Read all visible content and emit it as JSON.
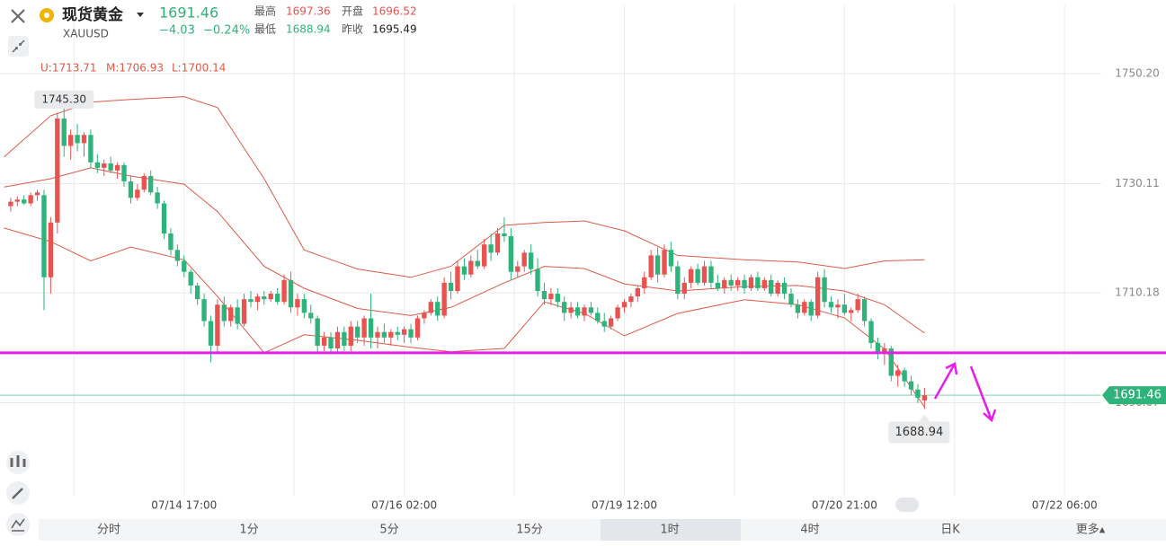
{
  "quote": {
    "name": "现货黄金",
    "symbol": "XAUUSD",
    "price": "1691.46",
    "change": "−4.03",
    "change_pct": "−0.24%",
    "high_label": "最高",
    "high": "1697.36",
    "open_label": "开盘",
    "open": "1696.52",
    "low_label": "最低",
    "low": "1688.94",
    "prev_close_label": "昨收",
    "prev_close": "1695.49"
  },
  "tabs": [
    "分时",
    "1分",
    "5分",
    "15分",
    "1时",
    "4时",
    "日K",
    "更多▴"
  ],
  "chart_data": {
    "type": "candlestick",
    "up_color": "#e8534f",
    "down_color": "#2eb37a",
    "band_color": "#dd5a48",
    "ylim": [
      1673.1,
      1757.09
    ],
    "xlim": [
      -1.6,
      163.5
    ],
    "yticks": [
      {
        "value": 1750.2,
        "label": "1750.20"
      },
      {
        "value": 1730.11,
        "label": "1730.11"
      },
      {
        "value": 1710.18,
        "label": "1710.18"
      },
      {
        "value": 1690.07,
        "label": "1690.07"
      }
    ],
    "xticks": [
      {
        "value": 26,
        "label": "07/14 17:00"
      },
      {
        "value": 59,
        "label": "07/16 02:00"
      },
      {
        "value": 92,
        "label": "07/19 12:00"
      },
      {
        "value": 125,
        "label": "07/20 21:00"
      },
      {
        "value": 158,
        "label": "07/22 06:00"
      }
    ],
    "minor_xticks": [
      9.5,
      42.5,
      75.5,
      108.5,
      141.5
    ],
    "grid": true,
    "candles": [
      [
        1726,
        1727.5,
        1725,
        1726.8
      ],
      [
        1726.8,
        1727.8,
        1726,
        1727.2
      ],
      [
        1727.2,
        1728,
        1726.2,
        1726.5
      ],
      [
        1726.5,
        1728.5,
        1726,
        1728
      ],
      [
        1728,
        1729,
        1727,
        1728.5
      ],
      [
        1728,
        1729,
        1707,
        1713
      ],
      [
        1713,
        1724,
        1710,
        1723
      ],
      [
        1723,
        1743,
        1721,
        1742
      ],
      [
        1742,
        1745.3,
        1735,
        1737
      ],
      [
        1737,
        1740,
        1734.5,
        1739
      ],
      [
        1739,
        1741,
        1736,
        1737.5
      ],
      [
        1737.5,
        1739.5,
        1735,
        1739
      ],
      [
        1739,
        1740,
        1733,
        1734
      ],
      [
        1734,
        1735.5,
        1732,
        1733
      ],
      [
        1733,
        1734.5,
        1731.5,
        1733.8
      ],
      [
        1733.8,
        1735,
        1732,
        1732.5
      ],
      [
        1732.5,
        1734,
        1731,
        1733.5
      ],
      [
        1733.5,
        1734,
        1729.5,
        1730.5
      ],
      [
        1730.5,
        1731.5,
        1726.5,
        1727.5
      ],
      [
        1727.5,
        1730,
        1727,
        1729
      ],
      [
        1729,
        1732,
        1728.5,
        1731.5
      ],
      [
        1731.5,
        1732.5,
        1728,
        1728.5
      ],
      [
        1728.5,
        1729.5,
        1725.5,
        1726.5
      ],
      [
        1726.5,
        1727,
        1720,
        1721
      ],
      [
        1721,
        1722,
        1717,
        1718
      ],
      [
        1718,
        1719,
        1715,
        1716
      ],
      [
        1716,
        1717,
        1713,
        1714
      ],
      [
        1714,
        1714.5,
        1710,
        1711.5
      ],
      [
        1711.5,
        1712,
        1708,
        1709
      ],
      [
        1709,
        1710,
        1704,
        1705
      ],
      [
        1705,
        1706,
        1697.5,
        1700.5
      ],
      [
        1700.5,
        1709,
        1699,
        1708
      ],
      [
        1708,
        1709.5,
        1704,
        1705
      ],
      [
        1705,
        1708,
        1704,
        1707.5
      ],
      [
        1707.5,
        1709,
        1703.5,
        1704.5
      ],
      [
        1704.5,
        1710,
        1704,
        1709
      ],
      [
        1709,
        1710.5,
        1707.5,
        1708.5
      ],
      [
        1708.5,
        1710,
        1707,
        1709.5
      ],
      [
        1709.5,
        1710.5,
        1708,
        1709
      ],
      [
        1709,
        1710.5,
        1708.5,
        1710
      ],
      [
        1710,
        1711,
        1708,
        1708.5
      ],
      [
        1708.5,
        1713.5,
        1708,
        1712.5
      ],
      [
        1712.5,
        1714,
        1706.5,
        1707.5
      ],
      [
        1707.5,
        1710,
        1706,
        1709
      ],
      [
        1709,
        1710,
        1705.5,
        1706.5
      ],
      [
        1706.5,
        1708,
        1704.5,
        1705.5
      ],
      [
        1705.5,
        1706,
        1699,
        1700.5
      ],
      [
        1700.5,
        1703,
        1699.5,
        1702
      ],
      [
        1702,
        1703,
        1699,
        1700
      ],
      [
        1700,
        1704,
        1699,
        1703
      ],
      [
        1703,
        1704,
        1699.5,
        1700.5
      ],
      [
        1700.5,
        1705,
        1699.5,
        1704
      ],
      [
        1704,
        1705,
        1701,
        1702
      ],
      [
        1702,
        1706,
        1700.5,
        1705.5
      ],
      [
        1705.5,
        1710,
        1700,
        1702
      ],
      [
        1702,
        1704,
        1700,
        1703
      ],
      [
        1703,
        1704.5,
        1701,
        1702
      ],
      [
        1702,
        1703.5,
        1700.5,
        1703
      ],
      [
        1703,
        1704,
        1701.5,
        1702.5
      ],
      [
        1702.5,
        1704,
        1701,
        1703.5
      ],
      [
        1703.5,
        1704.5,
        1701,
        1702
      ],
      [
        1702,
        1706,
        1701.5,
        1705.5
      ],
      [
        1705.5,
        1707,
        1704.5,
        1706.5
      ],
      [
        1706.5,
        1709,
        1706,
        1708.5
      ],
      [
        1708.5,
        1709.5,
        1705,
        1706
      ],
      [
        1706,
        1713,
        1705.5,
        1712
      ],
      [
        1712,
        1714,
        1709,
        1710.5
      ],
      [
        1710.5,
        1716,
        1710,
        1715
      ],
      [
        1715,
        1716.5,
        1712.5,
        1713.5
      ],
      [
        1713.5,
        1717,
        1713,
        1716
      ],
      [
        1716,
        1718,
        1714.5,
        1715
      ],
      [
        1715,
        1720,
        1714.5,
        1719
      ],
      [
        1719,
        1721,
        1716,
        1717.5
      ],
      [
        1717.5,
        1722,
        1717,
        1721
      ],
      [
        1721,
        1724,
        1719.5,
        1720.5
      ],
      [
        1720.5,
        1722,
        1712.5,
        1714
      ],
      [
        1714,
        1716,
        1713,
        1715
      ],
      [
        1715,
        1718,
        1714,
        1717.5
      ],
      [
        1717.5,
        1719,
        1713.5,
        1714.5
      ],
      [
        1714.5,
        1716.5,
        1709.5,
        1710.5
      ],
      [
        1710.5,
        1712,
        1708,
        1709
      ],
      [
        1709,
        1711,
        1708,
        1710
      ],
      [
        1710,
        1711,
        1707.5,
        1708.5
      ],
      [
        1708.5,
        1709.5,
        1705,
        1706.5
      ],
      [
        1706.5,
        1708.5,
        1705.5,
        1707.5
      ],
      [
        1707.5,
        1708.5,
        1705.5,
        1706
      ],
      [
        1706,
        1708,
        1705,
        1707.5
      ],
      [
        1707.5,
        1708.5,
        1706,
        1706.5
      ],
      [
        1706.5,
        1707.5,
        1704.5,
        1705
      ],
      [
        1705,
        1706.5,
        1703,
        1704
      ],
      [
        1704,
        1706,
        1703.5,
        1705.5
      ],
      [
        1705.5,
        1708,
        1705,
        1707.5
      ],
      [
        1707.5,
        1709,
        1706.5,
        1708.5
      ],
      [
        1708.5,
        1710,
        1707.5,
        1709.5
      ],
      [
        1709.5,
        1711.5,
        1708.5,
        1711
      ],
      [
        1711,
        1714,
        1710,
        1713
      ],
      [
        1713,
        1718,
        1712.5,
        1717
      ],
      [
        1717,
        1718.5,
        1712,
        1713.5
      ],
      [
        1713.5,
        1719,
        1713,
        1718
      ],
      [
        1718,
        1719.5,
        1714,
        1715
      ],
      [
        1715,
        1716,
        1709,
        1710
      ],
      [
        1710,
        1713,
        1709,
        1712
      ],
      [
        1712,
        1715,
        1711,
        1714.5
      ],
      [
        1714.5,
        1715.5,
        1711.5,
        1712
      ],
      [
        1712,
        1716,
        1711.5,
        1715
      ],
      [
        1715,
        1716,
        1711,
        1712
      ],
      [
        1712,
        1713.5,
        1710.5,
        1711
      ],
      [
        1711,
        1713,
        1710,
        1712.5
      ],
      [
        1712.5,
        1713.5,
        1710.5,
        1711.5
      ],
      [
        1711.5,
        1713,
        1710.5,
        1712.5
      ],
      [
        1712.5,
        1713.5,
        1710,
        1711
      ],
      [
        1711,
        1713.5,
        1710.5,
        1713
      ],
      [
        1713,
        1714,
        1710.5,
        1711
      ],
      [
        1711,
        1713,
        1710.5,
        1712.5
      ],
      [
        1712.5,
        1713.5,
        1709.5,
        1710
      ],
      [
        1710,
        1712.5,
        1709.5,
        1712
      ],
      [
        1712,
        1713,
        1709,
        1710
      ],
      [
        1710,
        1711,
        1707.5,
        1708
      ],
      [
        1708,
        1709,
        1705.5,
        1706.5
      ],
      [
        1706.5,
        1709,
        1706,
        1708.5
      ],
      [
        1708.5,
        1709,
        1705,
        1706
      ],
      [
        1706,
        1714,
        1705.5,
        1713
      ],
      [
        1713,
        1714.5,
        1707.5,
        1708.5
      ],
      [
        1708.5,
        1709.5,
        1706.5,
        1707.5
      ],
      [
        1707.5,
        1709,
        1705.5,
        1708
      ],
      [
        1708,
        1710,
        1706,
        1706.5
      ],
      [
        1706.5,
        1707.5,
        1705,
        1707
      ],
      [
        1707,
        1710,
        1706.5,
        1709
      ],
      [
        1709,
        1709.5,
        1704,
        1705
      ],
      [
        1705,
        1705.5,
        1700,
        1701
      ],
      [
        1701,
        1702,
        1698,
        1699
      ],
      [
        1699,
        1701,
        1697,
        1700
      ],
      [
        1700,
        1700.5,
        1694,
        1695
      ],
      [
        1695,
        1697,
        1693,
        1696
      ],
      [
        1696,
        1696.5,
        1693,
        1694
      ],
      [
        1694,
        1695,
        1691.5,
        1692.5
      ],
      [
        1692.5,
        1693.5,
        1690,
        1691
      ],
      [
        1690.5,
        1692.8,
        1688.94,
        1691.46
      ]
    ],
    "band_x": [
      -1,
      6,
      12,
      18,
      26,
      31,
      38,
      44,
      52,
      60,
      66,
      74,
      80,
      86,
      92,
      100,
      110,
      118,
      125,
      131,
      137
    ],
    "bands": [
      {
        "label": "U:1713.71",
        "values": [
          1735,
          1742.5,
          1745,
          1745.5,
          1746,
          1744,
          1731,
          1718,
          1714.5,
          1713,
          1715,
          1722.5,
          1723,
          1723.3,
          1721.5,
          1717,
          1716.2,
          1715.8,
          1714.6,
          1716,
          1716.2
        ]
      },
      {
        "label": "M:1706.93",
        "values": [
          1729.5,
          1731,
          1733,
          1731.5,
          1730,
          1725,
          1715,
          1711,
          1707.3,
          1706,
          1707.5,
          1712,
          1715,
          1714.6,
          1711.8,
          1710.5,
          1711.3,
          1711.5,
          1710.5,
          1708,
          1702.8
        ]
      },
      {
        "label": "L:1700.14",
        "values": [
          1722,
          1719.5,
          1716,
          1718.5,
          1716.2,
          1709.5,
          1699.2,
          1702.5,
          1701.5,
          1700.2,
          1699.4,
          1700,
          1708.5,
          1706.4,
          1702.3,
          1706.4,
          1708.9,
          1708,
          1705.6,
          1699.9,
          1689.3
        ]
      }
    ],
    "high_marker": {
      "index": 8,
      "value": 1745.3,
      "label": "1745.30"
    },
    "low_marker": {
      "index": 137,
      "value": 1688.94,
      "label": "1688.94"
    },
    "last_price": {
      "value": 1691.46,
      "label": "1691.46",
      "color": "#2eb37a"
    },
    "drawn_level": {
      "value": 1699.2,
      "color": "#e61ee6"
    }
  }
}
